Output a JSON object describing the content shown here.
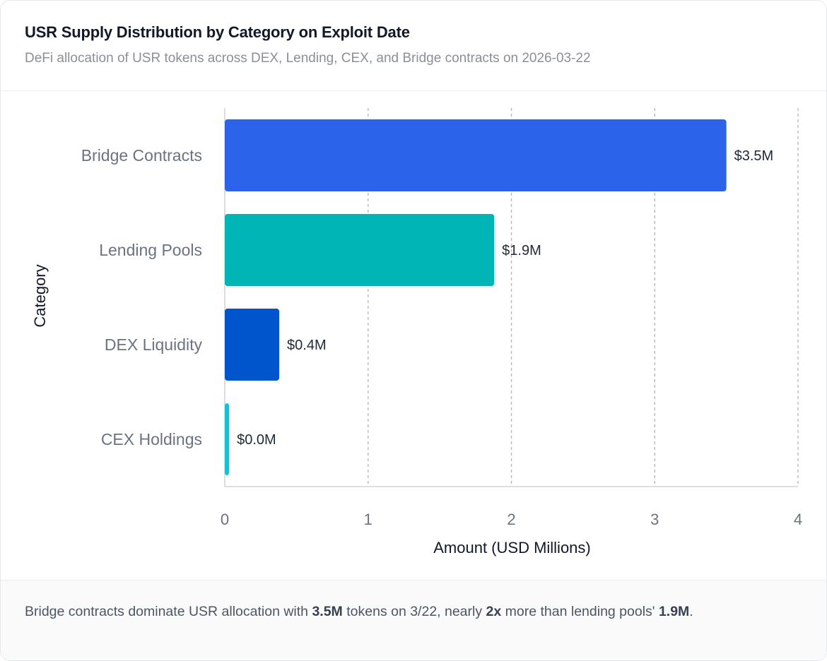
{
  "header": {
    "title": "USR Supply Distribution by Category on Exploit Date",
    "subtitle": "DeFi allocation of USR tokens across DEX, Lending, CEX, and Bridge contracts on 2026-03-22"
  },
  "chart_data": {
    "type": "bar",
    "orientation": "horizontal",
    "categories": [
      "Bridge Contracts",
      "Lending Pools",
      "DEX Liquidity",
      "CEX Holdings"
    ],
    "values": [
      3.5,
      1.88,
      0.38,
      0.03
    ],
    "data_labels": [
      "$3.5M",
      "$1.9M",
      "$0.4M",
      "$0.0M"
    ],
    "colors": [
      "#2b63eb",
      "#00b5b5",
      "#0055cc",
      "#12c2d6"
    ],
    "xlabel": "Amount (USD Millions)",
    "ylabel": "Category",
    "xlim": [
      0,
      4
    ],
    "xticks": [
      "0",
      "1",
      "2",
      "3",
      "4"
    ],
    "grid": "vertical-dashed"
  },
  "footer": {
    "t1": "Bridge contracts dominate USR allocation with ",
    "b1": "3.5M",
    "t2": " tokens on 3/22, nearly ",
    "b2": "2x",
    "t3": " more than lending pools' ",
    "b3": "1.9M",
    "t4": "."
  }
}
